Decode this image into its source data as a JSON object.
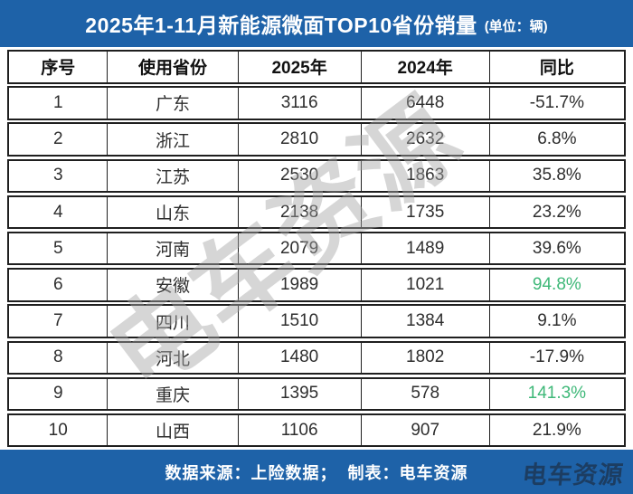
{
  "title": {
    "text": "2025年1-11月新能源微面TOP10省份销量",
    "unit": "(单位：辆)"
  },
  "table": {
    "headers": [
      "序号",
      "使用省份",
      "2025年",
      "2024年",
      "同比"
    ],
    "rows": [
      {
        "rank": "1",
        "province": "广东",
        "y2025": "3116",
        "y2024": "6448",
        "yoy": "-51.7%",
        "yoy_green": false
      },
      {
        "rank": "2",
        "province": "浙江",
        "y2025": "2810",
        "y2024": "2632",
        "yoy": "6.8%",
        "yoy_green": false
      },
      {
        "rank": "3",
        "province": "江苏",
        "y2025": "2530",
        "y2024": "1863",
        "yoy": "35.8%",
        "yoy_green": false
      },
      {
        "rank": "4",
        "province": "山东",
        "y2025": "2138",
        "y2024": "1735",
        "yoy": "23.2%",
        "yoy_green": false
      },
      {
        "rank": "5",
        "province": "河南",
        "y2025": "2079",
        "y2024": "1489",
        "yoy": "39.6%",
        "yoy_green": false
      },
      {
        "rank": "6",
        "province": "安徽",
        "y2025": "1989",
        "y2024": "1021",
        "yoy": "94.8%",
        "yoy_green": true
      },
      {
        "rank": "7",
        "province": "四川",
        "y2025": "1510",
        "y2024": "1384",
        "yoy": "9.1%",
        "yoy_green": false
      },
      {
        "rank": "8",
        "province": "河北",
        "y2025": "1480",
        "y2024": "1802",
        "yoy": "-17.9%",
        "yoy_green": false
      },
      {
        "rank": "9",
        "province": "重庆",
        "y2025": "1395",
        "y2024": "578",
        "yoy": "141.3%",
        "yoy_green": true
      },
      {
        "rank": "10",
        "province": "山西",
        "y2025": "1106",
        "y2024": "907",
        "yoy": "21.9%",
        "yoy_green": false
      }
    ]
  },
  "footer": {
    "text": "数据来源：上险数据；  制表：电车资源",
    "logo": "电车资源"
  },
  "watermark": {
    "text": "电车资源"
  },
  "colors": {
    "banner_blue": "#1E62A8",
    "highlight_green": "#3EB878",
    "border_dark": "#1f1f1f",
    "cell_text": "#2e2e2e"
  }
}
